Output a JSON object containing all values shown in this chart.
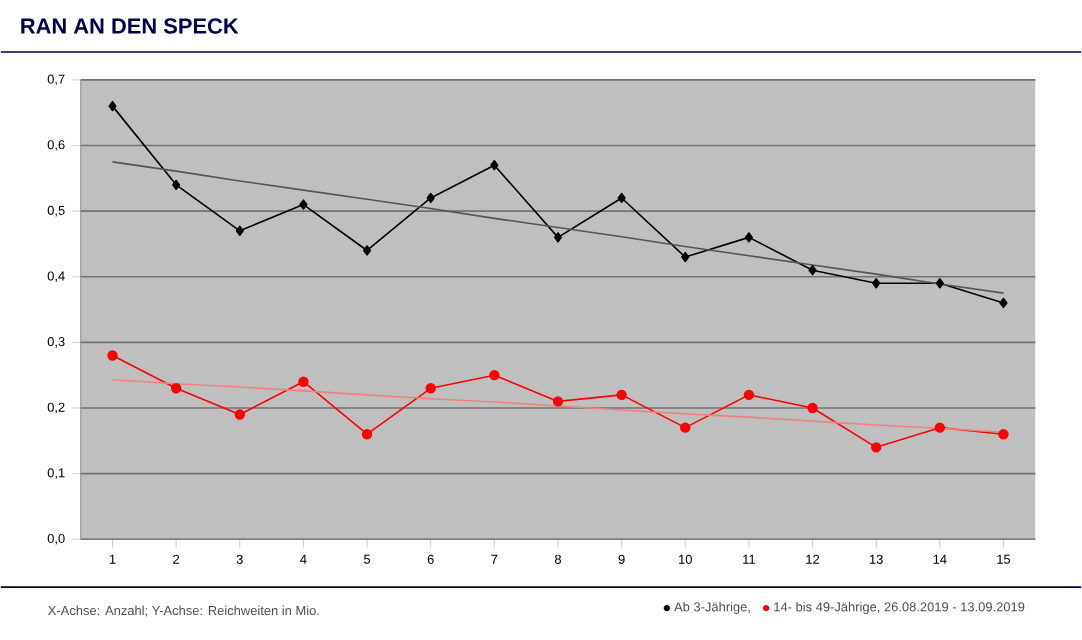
{
  "chart_data": {
    "type": "line",
    "title": "RAN AN DEN SPECK",
    "annotations": [
      "X-Achse: Anzahl; Y-Achse: Reichweiten in Mio."
    ],
    "x": [
      1,
      2,
      3,
      4,
      5,
      6,
      7,
      8,
      9,
      10,
      11,
      12,
      13,
      14,
      15
    ],
    "xlim": [
      0.5,
      15.5
    ],
    "xticks": [
      1,
      2,
      3,
      4,
      5,
      6,
      7,
      8,
      9,
      10,
      11,
      12,
      13,
      14,
      15
    ],
    "ylim": [
      0,
      0.7
    ],
    "yticks": [
      {
        "value": 0,
        "label": "0,0"
      },
      {
        "value": 0.1,
        "label": "0,1"
      },
      {
        "value": 0.2,
        "label": "0,2"
      },
      {
        "value": 0.3,
        "label": "0,3"
      },
      {
        "value": 0.4,
        "label": "0,4"
      },
      {
        "value": 0.5,
        "label": "0,5"
      },
      {
        "value": 0.6,
        "label": "0,6"
      },
      {
        "value": 0.7,
        "label": "0,7"
      }
    ],
    "grid": "y",
    "legend": "bottom right",
    "line_style": "solid",
    "series": [
      {
        "name": "Ab 3-Jährige,",
        "color": "#000000",
        "marker": "diamond",
        "values": [
          0.66,
          0.54,
          0.47,
          0.51,
          0.44,
          0.52,
          0.57,
          0.46,
          0.52,
          0.43,
          0.46,
          0.41,
          0.39,
          0.39,
          0.36
        ]
      },
      {
        "name": "14- bis 49-Jährige, 26.08.2019 - 13.09.2019",
        "color": "#ff0000",
        "marker": "circle",
        "values": [
          0.28,
          0.23,
          0.19,
          0.24,
          0.16,
          0.23,
          0.25,
          0.21,
          0.22,
          0.17,
          0.22,
          0.2,
          0.14,
          0.17,
          0.16
        ]
      },
      {
        "color": "#555555",
        "marker": "none",
        "values": [
          0.575,
          0.561,
          0.546,
          0.532,
          0.518,
          0.504,
          0.489,
          0.475,
          0.461,
          0.446,
          0.432,
          0.418,
          0.404,
          0.389,
          0.375
        ]
      },
      {
        "color": "#f08080",
        "marker": "none",
        "values": [
          0.243,
          0.237,
          0.232,
          0.226,
          0.22,
          0.214,
          0.209,
          0.203,
          0.197,
          0.191,
          0.186,
          0.18,
          0.174,
          0.169,
          0.163
        ]
      }
    ]
  }
}
